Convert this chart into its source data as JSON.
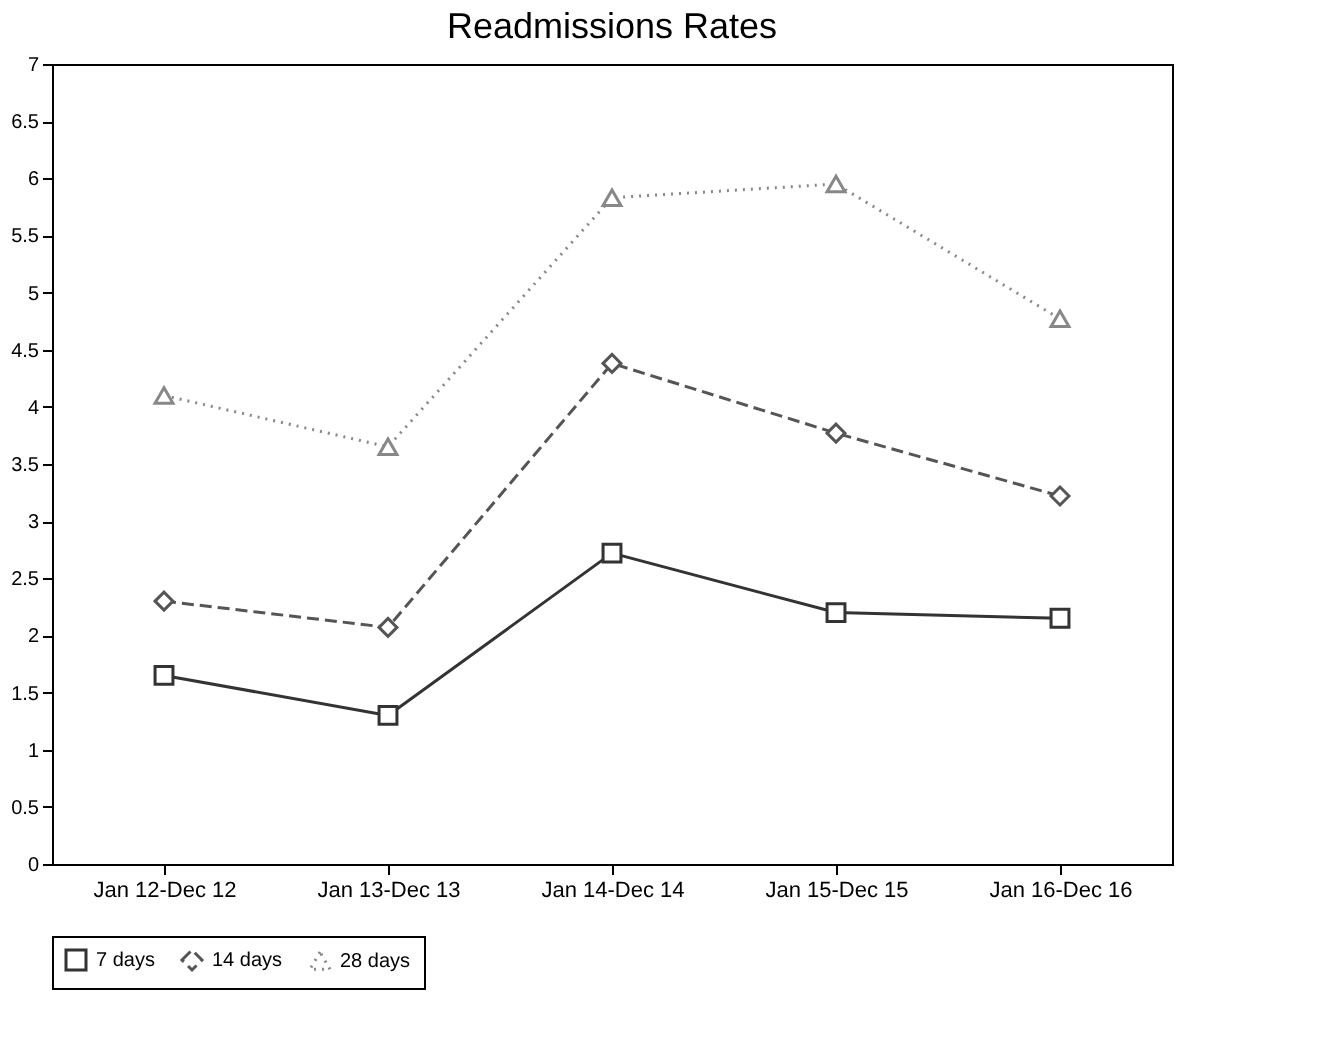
{
  "chart_data": {
    "type": "line",
    "title": "Readmissions Rates",
    "categories": [
      "Jan 12-Dec 12",
      "Jan 13-Dec 13",
      "Jan 14-Dec 14",
      "Jan 15-Dec 15",
      "Jan 16-Dec 16"
    ],
    "series": [
      {
        "name": "7 days",
        "color": "#333333",
        "marker": "square",
        "line_style": "solid",
        "values": [
          1.65,
          1.3,
          2.72,
          2.2,
          2.15
        ]
      },
      {
        "name": "14 days",
        "color": "#555555",
        "marker": "diamond",
        "line_style": "dashed",
        "values": [
          2.3,
          2.07,
          4.38,
          3.77,
          3.22
        ]
      },
      {
        "name": "28 days",
        "color": "#888888",
        "marker": "triangle",
        "line_style": "dotted",
        "values": [
          4.1,
          3.65,
          5.83,
          5.95,
          4.77
        ]
      }
    ],
    "ylim": [
      0,
      7
    ],
    "yticks": [
      0,
      0.5,
      1,
      1.5,
      2,
      2.5,
      3,
      3.5,
      4,
      4.5,
      5,
      5.5,
      6,
      6.5,
      7
    ],
    "grid": false,
    "legend": "bottom left"
  }
}
